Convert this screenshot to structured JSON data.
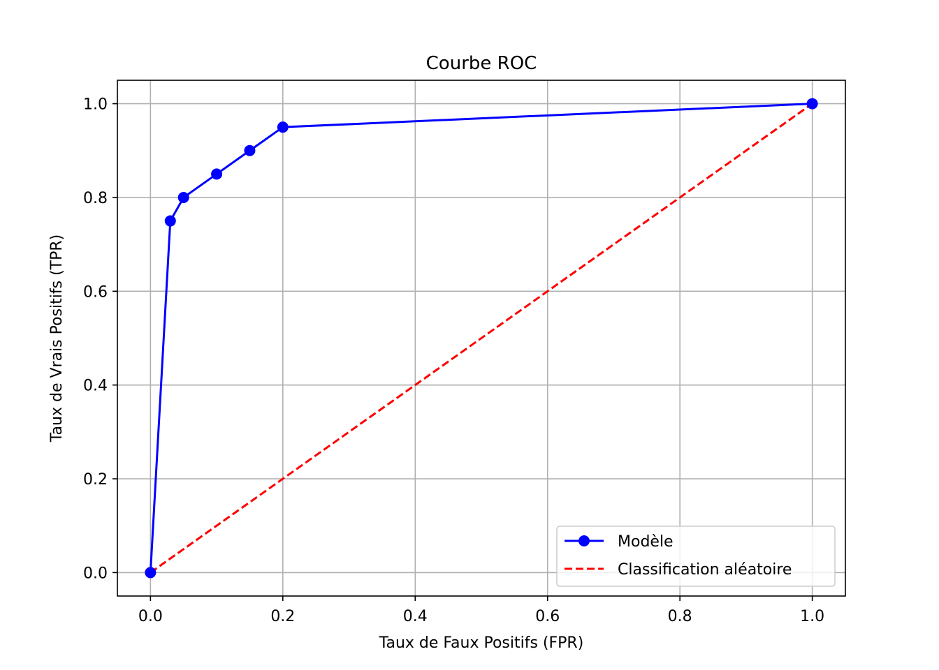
{
  "chart_data": {
    "type": "line",
    "title": "Courbe ROC",
    "xlabel": "Taux de Faux Positifs (FPR)",
    "ylabel": "Taux de Vrais Positifs (TPR)",
    "xlim": [
      -0.05,
      1.05
    ],
    "ylim": [
      -0.05,
      1.05
    ],
    "xticks": [
      0.0,
      0.2,
      0.4,
      0.6,
      0.8,
      1.0
    ],
    "yticks": [
      0.0,
      0.2,
      0.4,
      0.6,
      0.8,
      1.0
    ],
    "xtick_labels": [
      "0.0",
      "0.2",
      "0.4",
      "0.6",
      "0.8",
      "1.0"
    ],
    "ytick_labels": [
      "0.0",
      "0.2",
      "0.4",
      "0.6",
      "0.8",
      "1.0"
    ],
    "grid": true,
    "legend_position": "lower-right",
    "series": [
      {
        "name": "Modèle",
        "color": "#0000ff",
        "style": "solid",
        "marker": "circle",
        "x": [
          0.0,
          0.03,
          0.05,
          0.1,
          0.15,
          0.2,
          1.0
        ],
        "y": [
          0.0,
          0.75,
          0.8,
          0.85,
          0.9,
          0.95,
          1.0
        ]
      },
      {
        "name": "Classification aléatoire",
        "color": "#ff0000",
        "style": "dashed",
        "marker": "none",
        "x": [
          0.0,
          1.0
        ],
        "y": [
          0.0,
          1.0
        ]
      }
    ]
  }
}
